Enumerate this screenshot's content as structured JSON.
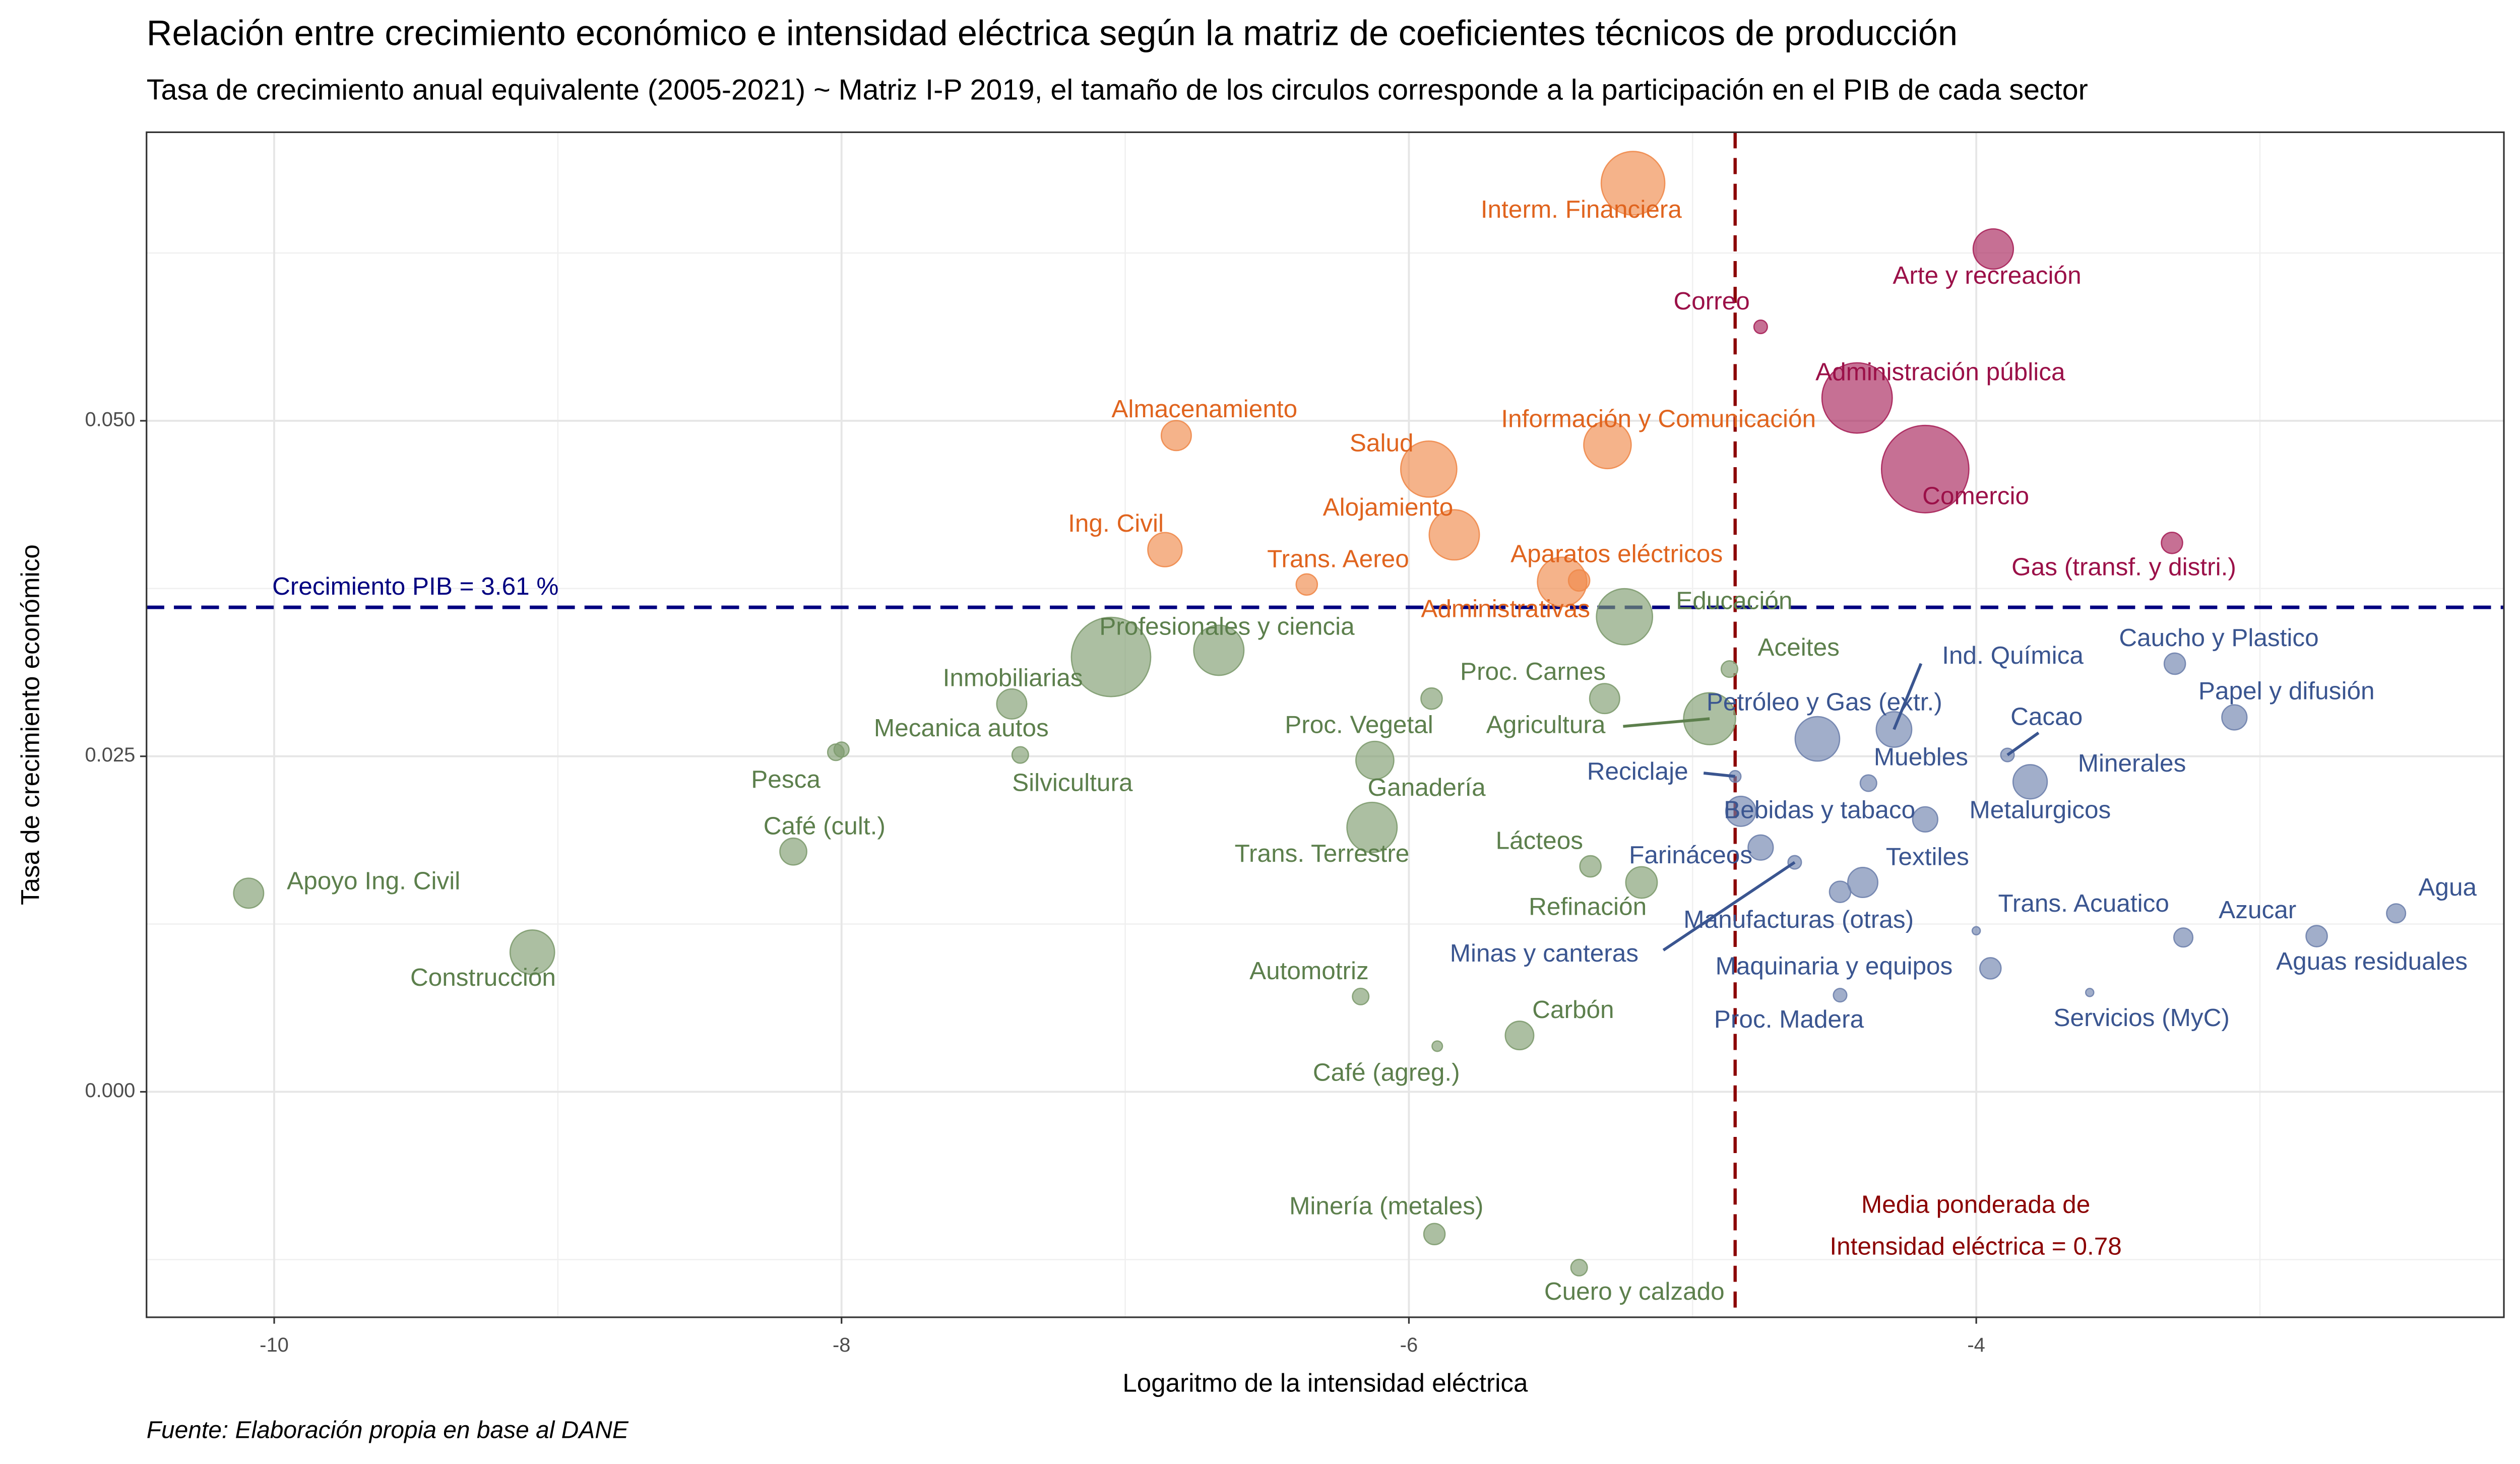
{
  "chart_data": {
    "type": "scatter",
    "title": "Relación entre crecimiento económico e intensidad eléctrica según la matriz de coeficientes técnicos de producción",
    "subtitle": "Tasa de crecimiento anual equivalente (2005-2021) ~ Matriz I-P 2019, el tamaño de los circulos corresponde a la participación en el PIB de cada sector",
    "x_label": "Logaritmo de la intensidad eléctrica",
    "y_label": "Tasa de crecimiento económico",
    "source": "Fuente: Elaboración propia en base al DANE",
    "xlim": [
      -10.45,
      -2.14
    ],
    "ylim": [
      -0.0168,
      0.0715
    ],
    "xticks": [
      -10,
      -8,
      -6,
      -4
    ],
    "yticks": [
      {
        "value": 0,
        "label": "0.000"
      },
      {
        "value": 0.025,
        "label": "0.025"
      },
      {
        "value": 0.05,
        "label": "0.050"
      }
    ],
    "grid": true,
    "hline": {
      "value": 0.0361,
      "label": "Crecimiento PIB = 3.61 %",
      "color": "#000080"
    },
    "vline": {
      "value": -4.85,
      "label": [
        "Media ponderada de",
        "Intensidad eléctrica = 0.78"
      ],
      "color": "#8b0000"
    },
    "series": [
      {
        "color": "#f08a4b",
        "label_color": "#e0641e",
        "labels": [
          "Interm. Financiera",
          "Almacenamiento",
          "Salud",
          "Información y Comunicación",
          "Ing. Civil",
          "Alojamiento",
          "Trans. Aereo",
          "Aparatos eléctricos",
          "Administrativas"
        ],
        "x": [
          -5.21,
          -6.82,
          -5.93,
          -5.3,
          -6.86,
          -5.84,
          -6.36,
          -5.4,
          -5.46
        ],
        "values": [
          0.0677,
          0.0489,
          0.0464,
          0.0482,
          0.0404,
          0.0415,
          0.0378,
          0.0381,
          0.038
        ],
        "sizes": [
          4.5,
          1,
          3.5,
          2.5,
          1.3,
          2.8,
          0.5,
          0.5,
          2.7
        ]
      },
      {
        "color": "#a8235a",
        "label_color": "#9b1048",
        "labels": [
          "Arte y recreación",
          "Correo",
          "Administración pública",
          "Comercio",
          "Gas (transf. y distri.)"
        ],
        "x": [
          -3.94,
          -4.76,
          -4.42,
          -4.18,
          -3.31
        ],
        "values": [
          0.0628,
          0.057,
          0.0517,
          0.0464,
          0.0409
        ],
        "sizes": [
          1.8,
          0.2,
          5.5,
          8.5,
          0.5
        ]
      },
      {
        "color": "#7f9c70",
        "label_color": "#5c7f4c",
        "labels": [
          "Educación",
          "Profesionales y ciencia",
          null,
          "Inmobiliarias",
          "Mecanica autos",
          "Pesca",
          "Silvicultura",
          "Café (cult.)",
          "Apoyo Ing. Civil",
          "Construcción",
          "Proc. Vegetal",
          "Ganadería",
          "Trans. Terrestre",
          "Proc. Carnes",
          "Agricultura",
          "Aceites",
          "Lácteos",
          "Refinación",
          "Automotriz",
          "Café (agreg.)",
          "Carbón",
          "Minería (metales)",
          "Cuero y calzado"
        ],
        "x": [
          -5.24,
          -7.05,
          -6.67,
          -7.4,
          -8.0,
          -8.02,
          -7.37,
          -8.17,
          -10.09,
          -9.09,
          -5.92,
          -6.12,
          -6.13,
          -5.31,
          -4.94,
          -4.87,
          -5.36,
          -5.18,
          -6.17,
          -5.9,
          -5.61,
          -5.91,
          -5.4
        ],
        "values": [
          0.0354,
          0.0324,
          0.0329,
          0.0289,
          0.0255,
          0.0253,
          0.0251,
          0.0179,
          0.0148,
          0.0104,
          0.0293,
          0.0247,
          0.0197,
          0.0293,
          0.0278,
          0.0315,
          0.0168,
          0.0156,
          0.0071,
          0.0034,
          0.0042,
          -0.0106,
          -0.0131
        ],
        "sizes": [
          3.5,
          7,
          2.8,
          1,
          0.25,
          0.3,
          0.3,
          0.8,
          1,
          2.2,
          0.5,
          1.6,
          2.8,
          1,
          3,
          0.3,
          0.5,
          1.1,
          0.3,
          0.12,
          0.9,
          0.5,
          0.3
        ]
      },
      {
        "color": "#6f82ad",
        "label_color": "#3a5590",
        "labels": [
          "Petróleo y Gas (extr.)",
          "Ind. Química",
          "Reciclaje",
          "Muebles",
          "Cacao",
          "Minerales",
          "Caucho y Plastico",
          "Papel y difusión",
          "Bebidas y tabaco",
          "Metalurgicos",
          "Farináceos",
          "Minas y canteras",
          "Textiles",
          "Manufacturas (otras)",
          "Trans. Acuatico",
          "Azucar",
          "Agua",
          "Aguas residuales",
          "Maquinaria y equipos",
          "Proc. Madera",
          "Servicios (MyC)"
        ],
        "x": [
          -4.56,
          -4.29,
          -4.85,
          -4.38,
          -3.89,
          -3.81,
          -3.3,
          -3.09,
          -4.83,
          -4.18,
          -4.76,
          -4.64,
          -4.4,
          -4.48,
          -4.0,
          -3.27,
          -2.52,
          -2.8,
          -3.95,
          -4.48,
          -3.6
        ],
        "values": [
          0.0263,
          0.027,
          0.0235,
          0.023,
          0.0251,
          0.0231,
          0.0319,
          0.0279,
          0.0209,
          0.0203,
          0.0182,
          0.0171,
          0.0156,
          0.0149,
          0.012,
          0.0115,
          0.0133,
          0.0116,
          0.0092,
          0.0072,
          0.0074
        ],
        "sizes": [
          2.2,
          1.4,
          0.15,
          0.3,
          0.2,
          1.3,
          0.5,
          0.7,
          1,
          0.7,
          0.7,
          0.2,
          1,
          0.5,
          0.05,
          0.4,
          0.4,
          0.5,
          0.5,
          0.2,
          0.05
        ]
      }
    ]
  }
}
